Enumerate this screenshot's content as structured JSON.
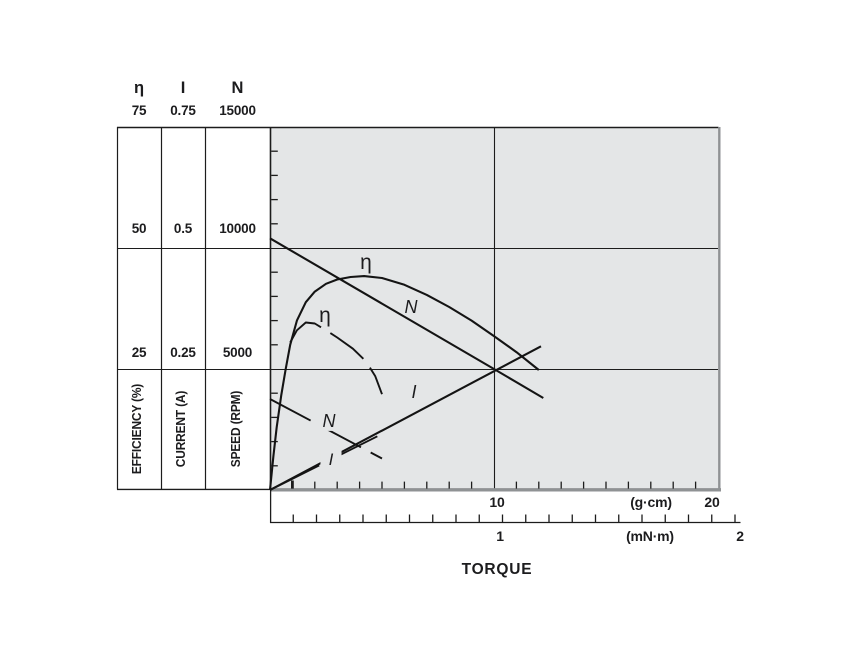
{
  "header": {
    "columns": [
      {
        "symbol": "η",
        "max": "75"
      },
      {
        "symbol": "I",
        "max": "0.75"
      },
      {
        "symbol": "N",
        "max": "15000"
      }
    ]
  },
  "table": {
    "rows": [
      {
        "efficiency": "50",
        "current": "0.5",
        "speed": "10000"
      },
      {
        "efficiency": "25",
        "current": "0.25",
        "speed": "5000"
      }
    ],
    "axis_labels": [
      "EFFICIENCY (%)",
      "CURRENT (A)",
      "SPEED (RPM)"
    ]
  },
  "x_axis": {
    "gcm": {
      "mid": "10",
      "unit": "(g·cm)",
      "end": "20"
    },
    "mnm": {
      "mid": "1",
      "unit": "(mN·m)",
      "end": "2"
    },
    "title": "TORQUE"
  },
  "chart_data": {
    "type": "line",
    "title": "Motor speed / current / efficiency vs torque characteristics",
    "xlabel": "TORQUE",
    "x_units": [
      {
        "label": "(g·cm)",
        "min": 0,
        "max": 20,
        "ticks_shown": [
          10,
          20
        ],
        "minor_step": 1
      },
      {
        "label": "(mN·m)",
        "min": 0,
        "max": 2,
        "ticks_shown": [
          1,
          2
        ],
        "minor_step": 0.1
      }
    ],
    "y_scales": {
      "efficiency": {
        "symbol": "η",
        "label": "EFFICIENCY (%)",
        "min": 0,
        "max": 75,
        "ticks_shown": [
          25,
          50,
          75
        ]
      },
      "current": {
        "symbol": "I",
        "label": "CURRENT (A)",
        "min": 0,
        "max": 0.75,
        "ticks_shown": [
          0.25,
          0.5,
          0.75
        ]
      },
      "speed": {
        "symbol": "N",
        "label": "SPEED (RPM)",
        "min": 0,
        "max": 15000,
        "ticks_shown": [
          5000,
          10000,
          15000
        ],
        "minor_step": 1000
      }
    },
    "grid": {
      "h_lines_speed": [
        5000,
        10000
      ],
      "v_lines_gcm": [
        10
      ]
    },
    "emphasis_tick_gcm": 1,
    "series": [
      {
        "name": "speed-solid",
        "label": "N",
        "scale": "speed",
        "style": "solid",
        "points": [
          [
            0,
            10400
          ],
          [
            10,
            5000
          ],
          [
            12.2,
            3800
          ]
        ]
      },
      {
        "name": "efficiency-solid",
        "label": "η",
        "scale": "efficiency",
        "style": "solid",
        "points": [
          [
            0,
            0
          ],
          [
            0.15,
            7
          ],
          [
            0.3,
            13
          ],
          [
            0.5,
            19.5
          ],
          [
            0.7,
            25
          ],
          [
            0.9,
            30
          ],
          [
            1.2,
            35
          ],
          [
            1.6,
            38.8
          ],
          [
            2,
            41
          ],
          [
            2.5,
            42.6
          ],
          [
            3,
            43.5
          ],
          [
            3.6,
            44
          ],
          [
            4.2,
            44.2
          ],
          [
            5,
            43.8
          ],
          [
            6,
            42.4
          ],
          [
            7,
            40.3
          ],
          [
            8,
            37.8
          ],
          [
            9,
            35
          ],
          [
            10,
            31.8
          ],
          [
            11,
            28.5
          ],
          [
            12,
            24.8
          ]
        ]
      },
      {
        "name": "current-solid",
        "label": "I",
        "scale": "current",
        "style": "solid",
        "points": [
          [
            0,
            0
          ],
          [
            12.1,
            0.297
          ]
        ]
      },
      {
        "name": "speed-dashed",
        "label": "N",
        "scale": "speed",
        "style": "dashed",
        "points": [
          [
            0,
            3760
          ],
          [
            5,
            1300
          ]
        ]
      },
      {
        "name": "efficiency-dashed",
        "label": "η",
        "scale": "efficiency",
        "style": "dashed",
        "points": [
          [
            0.9,
            30.5
          ],
          [
            1.2,
            33
          ],
          [
            1.6,
            34.6
          ],
          [
            2,
            34.4
          ],
          [
            2.5,
            33
          ],
          [
            3,
            31.5
          ],
          [
            3.7,
            29.2
          ],
          [
            4.3,
            26.5
          ],
          [
            4.7,
            23.5
          ],
          [
            5,
            19.8
          ]
        ]
      },
      {
        "name": "current-dashed",
        "label": "I",
        "scale": "current",
        "style": "dashed",
        "points": [
          [
            0,
            0
          ],
          [
            5.1,
            0.118
          ]
        ]
      }
    ],
    "colors": {
      "plot_bg": "#e4e6e7",
      "line": "#141414",
      "grid_line": "#1c1c1c",
      "border_gray": "#8f9294",
      "text": "#1c1c1e"
    },
    "legend": "none"
  }
}
